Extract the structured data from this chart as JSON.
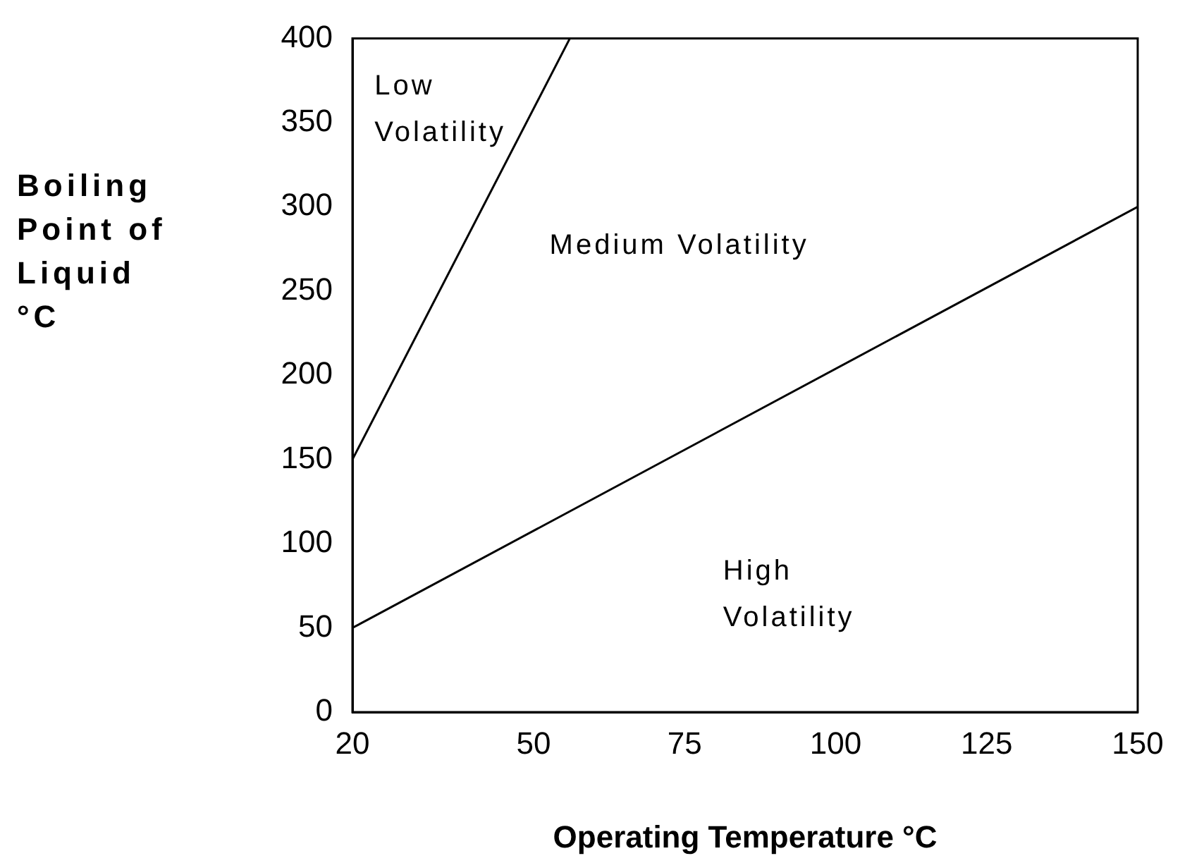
{
  "chart_data": {
    "type": "line",
    "xlabel": "Operating Temperature °C",
    "ylabel": "Boiling Point of Liquid °C",
    "series": [
      {
        "color": "#000000",
        "x": [
          20,
          56
        ],
        "values": [
          150,
          400
        ]
      },
      {
        "color": "#000000",
        "x": [
          20,
          150
        ],
        "values": [
          50,
          300
        ]
      }
    ],
    "xlim": [
      20,
      150
    ],
    "xticks": [
      20,
      50,
      75,
      100,
      125,
      150
    ],
    "ylim": [
      0,
      400
    ],
    "yticks": [
      0,
      50,
      100,
      150,
      200,
      250,
      300,
      350,
      400
    ],
    "grid": false,
    "legend": false,
    "marker": "none",
    "line_style": "solid",
    "annotations": [
      "Low\nVolatility",
      "Medium Volatility",
      "High\nVolatility"
    ]
  }
}
